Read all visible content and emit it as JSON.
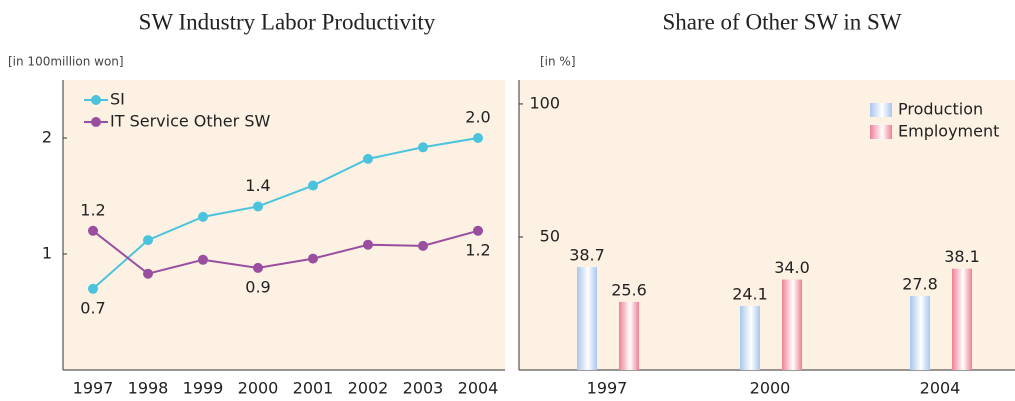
{
  "chart_data": [
    {
      "type": "line",
      "title": "SW Industry Labor Productivity",
      "y_label": "[in 100million won]",
      "categories": [
        "1997",
        "1998",
        "1999",
        "2000",
        "2001",
        "2002",
        "2003",
        "2004"
      ],
      "series": [
        {
          "name": "SI",
          "color": "#4cc3dc",
          "values": [
            0.7,
            1.12,
            1.32,
            1.41,
            1.59,
            1.82,
            1.92,
            2.0
          ],
          "value_labels": [
            "0.7",
            null,
            null,
            "1.4",
            null,
            null,
            null,
            "2.0"
          ]
        },
        {
          "name": "IT Service Other SW",
          "color": "#9a4e9f",
          "values": [
            1.2,
            0.83,
            0.95,
            0.88,
            0.96,
            1.08,
            1.07,
            1.2
          ],
          "value_labels": [
            "1.2",
            null,
            null,
            "0.9",
            null,
            null,
            null,
            "1.2"
          ]
        }
      ],
      "ylim": [
        0,
        2.5
      ],
      "yticks": [
        1,
        2
      ],
      "legend": "upper left"
    },
    {
      "type": "bar",
      "title": "Share of Other SW in SW",
      "y_label": "[in %]",
      "categories": [
        "1997",
        "2000",
        "2004"
      ],
      "series": [
        {
          "name": "Production",
          "color": "#a9c6ec",
          "values": [
            38.7,
            24.1,
            27.8
          ],
          "value_labels": [
            "38.7",
            "24.1",
            "27.8"
          ]
        },
        {
          "name": "Employment",
          "color": "#ee8196",
          "values": [
            25.6,
            34.0,
            38.1
          ],
          "value_labels": [
            "25.6",
            "34.0",
            "38.1"
          ]
        }
      ],
      "ylim": [
        0,
        109
      ],
      "yticks": [
        50,
        100
      ],
      "legend": "upper right"
    }
  ]
}
